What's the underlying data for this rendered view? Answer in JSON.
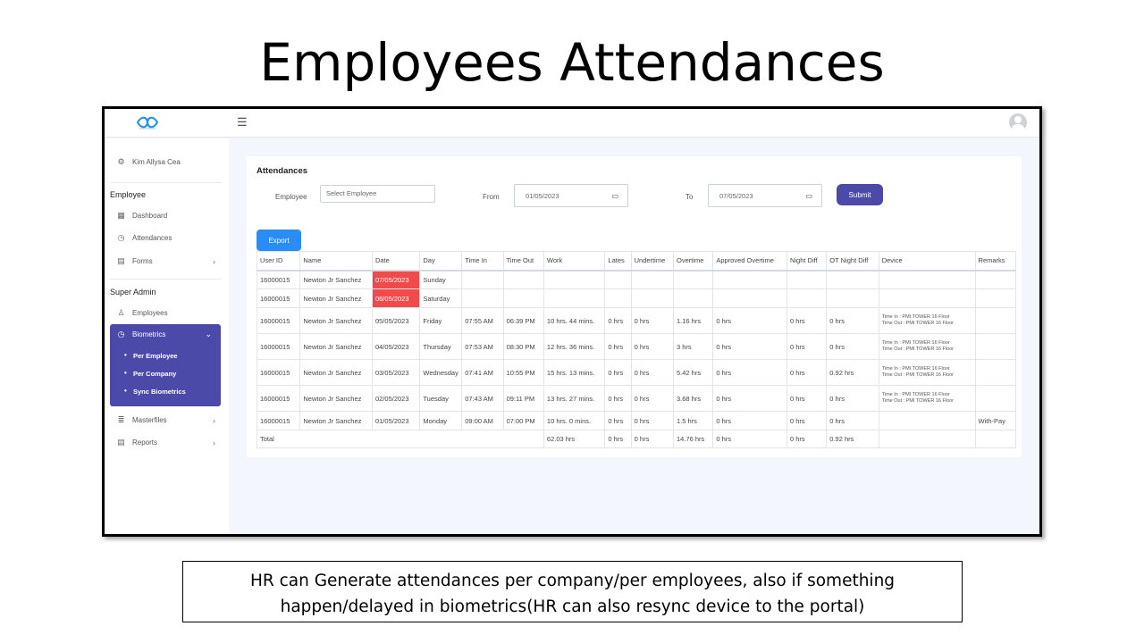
{
  "slide": {
    "title": "Employees Attendances",
    "caption": "HR can Generate attendances per company/per employees, also if something happen/delayed in biometrics(HR can also resync device to the portal)"
  },
  "colors": {
    "accent": "#4b4aa8",
    "export": "#2a8cf7",
    "highlight_red": "#f04a4a"
  },
  "sidebar": {
    "user_name": "Kim Allysa Cea",
    "employee_section": "Employee",
    "items": {
      "dashboard": "Dashboard",
      "attendances": "Attendances",
      "forms": "Forms"
    },
    "super_admin_section": "Super Admin",
    "admin_items": {
      "employees": "Employees",
      "biometrics": "Biometrics",
      "masterfiles": "Masterfiles",
      "reports": "Reports"
    },
    "biometrics_sub": {
      "per_employee": "Per Employee",
      "per_company": "Per Company",
      "sync": "Sync Biometrics"
    }
  },
  "form": {
    "title": "Attendances",
    "employee_label": "Employee",
    "employee_placeholder": "Select Employee",
    "from_label": "From",
    "from_value": "01/05/2023",
    "to_label": "To",
    "to_value": "07/05/2023",
    "submit": "Submit",
    "export": "Export"
  },
  "table": {
    "headers": [
      "User ID",
      "Name",
      "Date",
      "Day",
      "Time In",
      "Time Out",
      "Work",
      "Lates",
      "Undertime",
      "Overtime",
      "Approved Overtime",
      "Night Diff",
      "OT Night Diff",
      "Device",
      "Remarks"
    ],
    "rows": [
      {
        "user_id": "16000015",
        "name": "Newton Jr Sanchez",
        "date": "07/05/2023",
        "day": "Sunday",
        "time_in": "",
        "time_out": "",
        "work": "",
        "lates": "",
        "undertime": "",
        "overtime": "",
        "approved_ot": "",
        "night_diff": "",
        "ot_night_diff": "",
        "device_in": "",
        "device_out": "",
        "remarks": ""
      },
      {
        "user_id": "16000015",
        "name": "Newton Jr Sanchez",
        "date": "06/05/2023",
        "day": "Saturday",
        "time_in": "",
        "time_out": "",
        "work": "",
        "lates": "",
        "undertime": "",
        "overtime": "",
        "approved_ot": "",
        "night_diff": "",
        "ot_night_diff": "",
        "device_in": "",
        "device_out": "",
        "remarks": ""
      },
      {
        "user_id": "16000015",
        "name": "Newton Jr Sanchez",
        "date": "05/05/2023",
        "day": "Friday",
        "time_in": "07:55 AM",
        "time_out": "06:39 PM",
        "work": "10 hrs. 44 mins.",
        "lates": "0 hrs",
        "undertime": "0 hrs",
        "overtime": "1.16 hrs",
        "approved_ot": "0 hrs",
        "night_diff": "0 hrs",
        "ot_night_diff": "0 hrs",
        "device_in": "Time In : PMI TOWER 16 Floor",
        "device_out": "Time Out : PMI TOWER 16 Floor",
        "remarks": ""
      },
      {
        "user_id": "16000015",
        "name": "Newton Jr Sanchez",
        "date": "04/05/2023",
        "day": "Thursday",
        "time_in": "07:53 AM",
        "time_out": "08:30 PM",
        "work": "12 hrs. 36 mins.",
        "lates": "0 hrs",
        "undertime": "0 hrs",
        "overtime": "3 hrs",
        "approved_ot": "0 hrs",
        "night_diff": "0 hrs",
        "ot_night_diff": "0 hrs",
        "device_in": "Time In : PMI TOWER 16 Floor",
        "device_out": "Time Out : PMI TOWER 16 Floor",
        "remarks": ""
      },
      {
        "user_id": "16000015",
        "name": "Newton Jr Sanchez",
        "date": "03/05/2023",
        "day": "Wednesday",
        "time_in": "07:41 AM",
        "time_out": "10:55 PM",
        "work": "15 hrs. 13 mins.",
        "lates": "0 hrs",
        "undertime": "0 hrs",
        "overtime": "5.42 hrs",
        "approved_ot": "0 hrs",
        "night_diff": "0 hrs",
        "ot_night_diff": "0.92 hrs",
        "device_in": "Time In : PMI TOWER 16 Floor",
        "device_out": "Time Out : PMI TOWER 16 Floor",
        "remarks": ""
      },
      {
        "user_id": "16000015",
        "name": "Newton Jr Sanchez",
        "date": "02/05/2023",
        "day": "Tuesday",
        "time_in": "07:43 AM",
        "time_out": "09:11 PM",
        "work": "13 hrs. 27 mins.",
        "lates": "0 hrs",
        "undertime": "0 hrs",
        "overtime": "3.68 hrs",
        "approved_ot": "0 hrs",
        "night_diff": "0 hrs",
        "ot_night_diff": "0 hrs",
        "device_in": "Time In : PMI TOWER 16 Floor",
        "device_out": "Time Out : PMI TOWER 16 Floor",
        "remarks": ""
      },
      {
        "user_id": "16000015",
        "name": "Newton Jr Sanchez",
        "date": "01/05/2023",
        "day": "Monday",
        "time_in": "09:00 AM",
        "time_out": "07:00 PM",
        "work": "10 hrs. 0 mins.",
        "lates": "0 hrs",
        "undertime": "0 hrs",
        "overtime": "1.5 hrs",
        "approved_ot": "0 hrs",
        "night_diff": "0 hrs",
        "ot_night_diff": "0 hrs",
        "device_in": "",
        "device_out": "",
        "remarks": "With-Pay"
      }
    ],
    "total": {
      "label": "Total",
      "work": "62.03 hrs",
      "lates": "0 hrs",
      "undertime": "0 hrs",
      "overtime": "14.76 hrs",
      "approved_ot": "0 hrs",
      "night_diff": "0 hrs",
      "ot_night_diff": "0.92 hrs"
    }
  }
}
